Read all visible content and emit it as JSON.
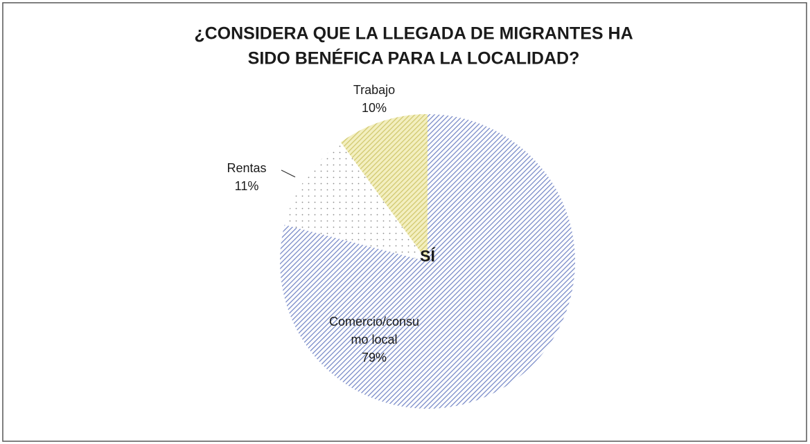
{
  "chart_data": {
    "type": "pie",
    "title": [
      "¿CONSIDERA QUE LA LLEGADA DE MIGRANTES HA",
      "SIDO BENÉFICA PARA LA LOCALIDAD?"
    ],
    "center_label": "SÍ",
    "categories": [
      "Comercio/consumo local",
      "Rentas",
      "Trabajo"
    ],
    "values": [
      79,
      11,
      10
    ],
    "value_labels": [
      "79%",
      "11%",
      "10%"
    ],
    "colors": [
      "#6f82c4",
      "#8a8a8a",
      "#cfc66a"
    ],
    "patterns": [
      "hatch",
      "dots",
      "hatch"
    ]
  }
}
